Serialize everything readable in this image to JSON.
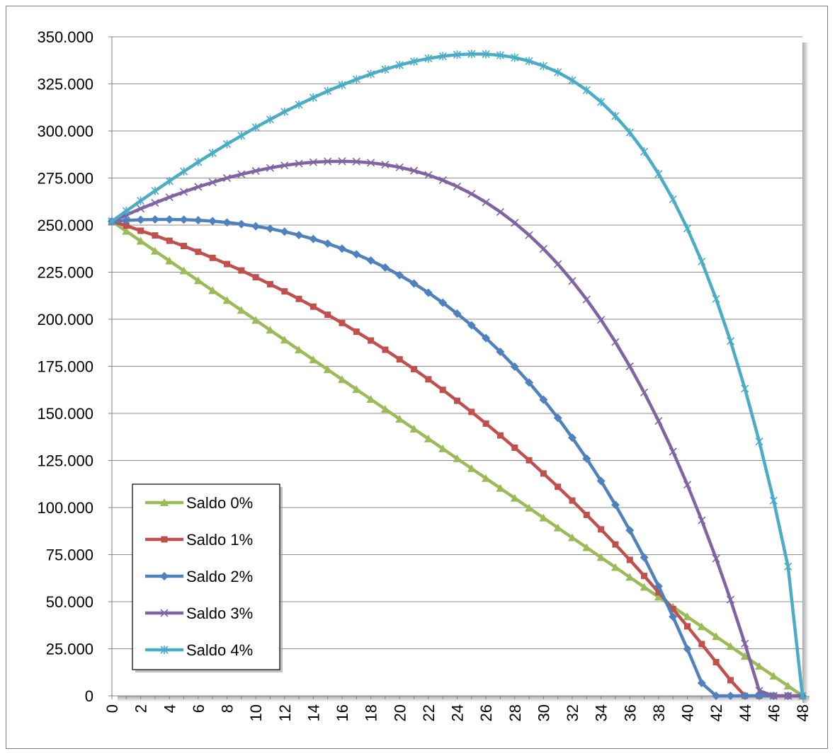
{
  "chart_data": {
    "type": "line",
    "title": "",
    "xlabel": "",
    "ylabel": "",
    "x": [
      0,
      1,
      2,
      3,
      4,
      5,
      6,
      7,
      8,
      9,
      10,
      11,
      12,
      13,
      14,
      15,
      16,
      17,
      18,
      19,
      20,
      21,
      22,
      23,
      24,
      25,
      26,
      27,
      28,
      29,
      30,
      31,
      32,
      33,
      34,
      35,
      36,
      37,
      38,
      39,
      40,
      41,
      42,
      43,
      44,
      45,
      46,
      47,
      48
    ],
    "xticks": [
      "0",
      "2",
      "4",
      "6",
      "8",
      "10",
      "12",
      "14",
      "16",
      "18",
      "20",
      "22",
      "24",
      "26",
      "28",
      "30",
      "32",
      "34",
      "36",
      "38",
      "40",
      "42",
      "44",
      "46",
      "48"
    ],
    "ylim": [
      0,
      350000
    ],
    "yticks": [
      "0",
      "25.000",
      "50.000",
      "75.000",
      "100.000",
      "125.000",
      "150.000",
      "175.000",
      "200.000",
      "225.000",
      "250.000",
      "275.000",
      "300.000",
      "325.000",
      "350.000"
    ],
    "grid": "horizontal",
    "legend_position": "bottom-left",
    "series": [
      {
        "name": "Saldo 0%",
        "color": "#9bbb59",
        "marker": "triangle",
        "values": [
          252000,
          246750,
          241500,
          236250,
          231000,
          225750,
          220500,
          215250,
          210000,
          204750,
          199500,
          194250,
          189000,
          183750,
          178500,
          173250,
          168000,
          162750,
          157500,
          152250,
          147000,
          141750,
          136500,
          131250,
          126000,
          120750,
          115500,
          110250,
          105000,
          99750,
          94500,
          89250,
          84000,
          78750,
          73500,
          68250,
          63000,
          57750,
          52500,
          47250,
          42000,
          36750,
          31500,
          26250,
          21000,
          15750,
          10500,
          5250,
          0
        ]
      },
      {
        "name": "Saldo 1%",
        "color": "#c0504d",
        "marker": "square",
        "values": [
          252000,
          249700,
          247000,
          244500,
          241700,
          238900,
          235800,
          232600,
          229300,
          225900,
          222300,
          218600,
          214800,
          210800,
          206700,
          202400,
          198000,
          193400,
          188700,
          183800,
          178700,
          173500,
          168100,
          162500,
          156700,
          150800,
          144600,
          138300,
          131800,
          125100,
          118100,
          111000,
          103700,
          96100,
          88400,
          80400,
          72200,
          63700,
          55000,
          46100,
          36900,
          27500,
          17900,
          8300,
          0,
          0,
          0,
          0,
          0
        ]
      },
      {
        "name": "Saldo 2%",
        "color": "#4f81bd",
        "marker": "diamond",
        "values": [
          252000,
          252500,
          252800,
          253000,
          253000,
          252900,
          252600,
          252100,
          251400,
          250500,
          249400,
          248100,
          246500,
          244700,
          242600,
          240200,
          237500,
          234500,
          231200,
          227500,
          223400,
          219000,
          214100,
          208800,
          203000,
          196800,
          190000,
          182700,
          174800,
          166400,
          157300,
          147600,
          137100,
          126000,
          114100,
          101400,
          87900,
          73500,
          58200,
          42000,
          24900,
          6800,
          0,
          0,
          0,
          0,
          0,
          0,
          0
        ]
      },
      {
        "name": "Saldo 3%",
        "color": "#8064a2",
        "marker": "x",
        "values": [
          252000,
          255400,
          258700,
          261800,
          264800,
          267600,
          270300,
          272700,
          275000,
          277000,
          278800,
          280400,
          281700,
          282700,
          283400,
          283800,
          283900,
          283700,
          283100,
          282100,
          280700,
          278900,
          276600,
          273800,
          270500,
          266600,
          262100,
          257000,
          251200,
          244700,
          237400,
          229300,
          220300,
          210500,
          199700,
          187900,
          175000,
          161100,
          146000,
          129700,
          112100,
          93200,
          72900,
          51100,
          27700,
          2700,
          0,
          0,
          0
        ]
      },
      {
        "name": "Saldo 4%",
        "color": "#4bacc6",
        "marker": "star",
        "values": [
          252000,
          257500,
          262900,
          268200,
          273400,
          278500,
          283500,
          288300,
          293000,
          297500,
          301900,
          306100,
          310200,
          314000,
          317700,
          321200,
          324400,
          327400,
          330200,
          332700,
          335000,
          336900,
          338500,
          339700,
          340500,
          340900,
          340800,
          340200,
          339000,
          337100,
          334500,
          331200,
          326900,
          321700,
          315400,
          307900,
          299200,
          289000,
          277200,
          263700,
          248200,
          230700,
          210800,
          188400,
          163200,
          135100,
          103700,
          68700,
          0
        ]
      }
    ]
  }
}
